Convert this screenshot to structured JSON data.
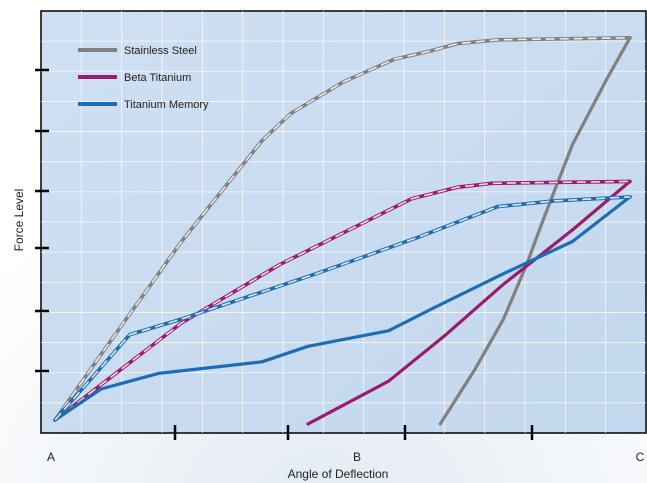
{
  "chart_data": {
    "type": "line",
    "title": "",
    "xlabel": "Angle of Deflection",
    "ylabel": "Force Level",
    "x_tick_labels": [
      {
        "label": "A",
        "x": 0
      },
      {
        "label": "B",
        "x": 50
      },
      {
        "label": "C",
        "x": 100
      }
    ],
    "xlim": [
      0,
      100
    ],
    "ylim": [
      0,
      100
    ],
    "grid": true,
    "legend": "top-left",
    "series": [
      {
        "name": "Stainless Steel",
        "color": "#808080",
        "activation": [
          [
            0,
            0
          ],
          [
            9,
            19
          ],
          [
            22,
            46
          ],
          [
            36,
            72
          ],
          [
            41,
            79
          ],
          [
            50,
            87
          ],
          [
            59,
            93
          ],
          [
            65,
            95
          ],
          [
            70,
            97
          ],
          [
            77,
            98
          ],
          [
            100,
            98.5
          ]
        ],
        "deactivation": [
          [
            67,
            -1
          ],
          [
            73,
            13
          ],
          [
            78,
            26
          ],
          [
            82,
            40
          ],
          [
            85,
            52
          ],
          [
            90,
            71
          ],
          [
            96,
            88
          ],
          [
            100,
            98.5
          ]
        ]
      },
      {
        "name": "Beta Titanium",
        "color": "#9b1c6b",
        "activation": [
          [
            0,
            0
          ],
          [
            22,
            25
          ],
          [
            39,
            40
          ],
          [
            62,
            57
          ],
          [
            70,
            60
          ],
          [
            76,
            61
          ],
          [
            100,
            61.5
          ]
        ],
        "deactivation": [
          [
            44,
            -1
          ],
          [
            58,
            10
          ],
          [
            68,
            22
          ],
          [
            78,
            35
          ],
          [
            90,
            49
          ],
          [
            100,
            61.5
          ]
        ]
      },
      {
        "name": "Titanium Memory",
        "color": "#1f6cb3",
        "activation": [
          [
            0,
            0
          ],
          [
            13,
            22
          ],
          [
            22,
            26
          ],
          [
            46,
            38
          ],
          [
            63,
            47
          ],
          [
            77,
            55
          ],
          [
            87,
            56.5
          ],
          [
            100,
            57.5
          ]
        ],
        "deactivation": [
          [
            0,
            0
          ],
          [
            8,
            8
          ],
          [
            18,
            12
          ],
          [
            36,
            15
          ],
          [
            44,
            19
          ],
          [
            58,
            23
          ],
          [
            66,
            29
          ],
          [
            77,
            37
          ],
          [
            90,
            46
          ],
          [
            100,
            57.5
          ]
        ]
      }
    ]
  }
}
